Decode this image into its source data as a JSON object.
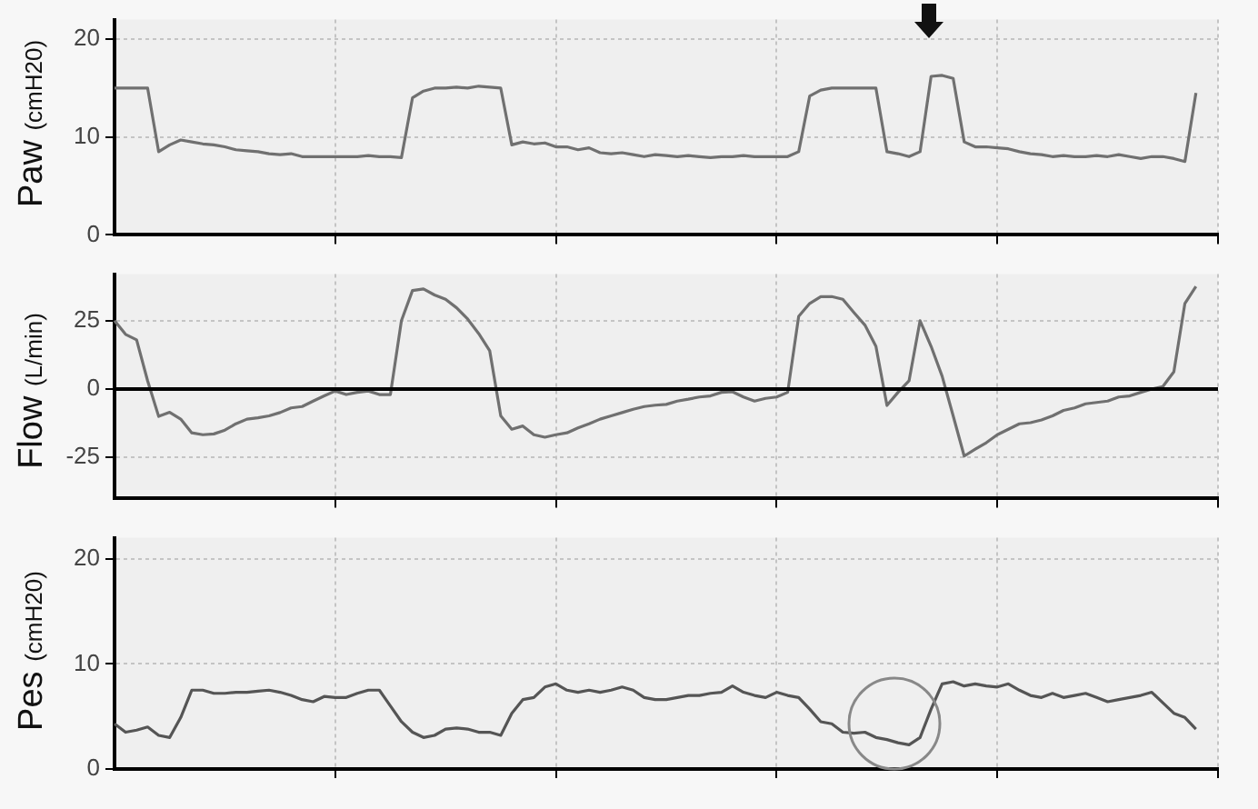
{
  "chart_data": [
    {
      "type": "line",
      "ylabel": "Paw (cmH20)",
      "categories": [
        null,
        null,
        null,
        null,
        null,
        null,
        null,
        null,
        null,
        null,
        null,
        null,
        null,
        null,
        null,
        null,
        null,
        null,
        null,
        null,
        null,
        null,
        null,
        null,
        null,
        null,
        null,
        null,
        null,
        null,
        null,
        null,
        null,
        null,
        null,
        null,
        null,
        null,
        null,
        null,
        null,
        null,
        null,
        null,
        null,
        null,
        null,
        null,
        null,
        null,
        null,
        null,
        null,
        null,
        null,
        null,
        null,
        null,
        null,
        null,
        null,
        null,
        null,
        null,
        null,
        null,
        null,
        null,
        null,
        null,
        null,
        null,
        null,
        null,
        null,
        null,
        null,
        null,
        null,
        null,
        null,
        null,
        null,
        null,
        null,
        null,
        null,
        null,
        null,
        null,
        null,
        null,
        null,
        null,
        null,
        null,
        null,
        null,
        null,
        null,
        null
      ],
      "values": [
        15,
        15,
        15,
        15,
        8.5,
        9.2,
        9.7,
        9.5,
        9.3,
        9.2,
        9,
        8.7,
        8.6,
        8.5,
        8.3,
        8.2,
        8.3,
        8,
        8,
        8,
        8,
        8,
        8,
        8.1,
        8,
        8,
        7.9,
        14,
        14.7,
        15,
        15,
        15.1,
        15,
        15.2,
        15.1,
        15,
        9.2,
        9.5,
        9.3,
        9.4,
        9,
        9,
        8.7,
        8.9,
        8.4,
        8.3,
        8.4,
        8.2,
        8,
        8.2,
        8.1,
        8,
        8.1,
        8,
        7.9,
        8,
        8,
        8.1,
        8,
        8,
        8,
        8,
        8.5,
        14.2,
        14.8,
        15,
        15,
        15,
        15,
        15,
        8.5,
        8.3,
        8,
        8.5,
        16.2,
        16.3,
        16,
        9.5,
        9,
        9,
        8.9,
        8.8,
        8.5,
        8.3,
        8.2,
        8,
        8.1,
        8,
        8,
        8.1,
        8,
        8.2,
        8,
        7.8,
        8,
        8,
        7.8,
        7.5,
        14.5,
        null,
        null
      ],
      "color": "#707070",
      "ylim": [
        0,
        22
      ],
      "yticks": [
        0,
        10,
        20
      ],
      "grid": true,
      "marker": "none",
      "tick_labels": "y"
    },
    {
      "type": "line",
      "ylabel": "Flow (L/min)",
      "categories": [
        null,
        null,
        null,
        null,
        null,
        null,
        null,
        null,
        null,
        null,
        null,
        null,
        null,
        null,
        null,
        null,
        null,
        null,
        null,
        null,
        null,
        null,
        null,
        null,
        null,
        null,
        null,
        null,
        null,
        null,
        null,
        null,
        null,
        null,
        null,
        null,
        null,
        null,
        null,
        null,
        null,
        null,
        null,
        null,
        null,
        null,
        null,
        null,
        null,
        null,
        null,
        null,
        null,
        null,
        null,
        null,
        null,
        null,
        null,
        null,
        null,
        null,
        null,
        null,
        null,
        null,
        null,
        null,
        null,
        null,
        null,
        null,
        null,
        null,
        null,
        null,
        null,
        null,
        null,
        null,
        null,
        null,
        null,
        null,
        null,
        null,
        null,
        null,
        null,
        null,
        null,
        null,
        null,
        null,
        null,
        null,
        null,
        null,
        null,
        null,
        null
      ],
      "values": [
        25,
        20,
        18,
        3,
        -10,
        -8.5,
        -11,
        -16,
        -16.7,
        -16.4,
        -15,
        -12.7,
        -11,
        -10.5,
        -9.8,
        -8.6,
        -6.9,
        -6.4,
        -4.4,
        -2.5,
        -0.7,
        -2,
        -1.2,
        -0.7,
        -2,
        -2,
        25,
        36,
        36.6,
        34.4,
        32.8,
        29.7,
        25.6,
        20.3,
        14,
        -9.8,
        -14.7,
        -13.5,
        -16.7,
        -17.6,
        -16.7,
        -16,
        -14.2,
        -12.7,
        -11,
        -9.8,
        -8.6,
        -7.4,
        -6.4,
        -5.9,
        -5.6,
        -4.4,
        -3.7,
        -2.9,
        -2.5,
        -1.2,
        -1,
        -2.9,
        -4.4,
        -3.4,
        -2.9,
        -1.2,
        26.6,
        31.3,
        33.8,
        33.8,
        32.8,
        28,
        23.4,
        15.6,
        -6,
        -1.2,
        3,
        25,
        15.6,
        4.7,
        -9.8,
        -24.5,
        -22,
        -19.6,
        -16.7,
        -14.7,
        -12.7,
        -12.3,
        -11.3,
        -9.8,
        -7.8,
        -6.9,
        -5.4,
        -4.9,
        -4.4,
        -2.9,
        -2.5,
        -1.2,
        0,
        0.9,
        6.3,
        31.3,
        37.5,
        null,
        null
      ],
      "color": "#707070",
      "ylim": [
        -40,
        42
      ],
      "yticks": [
        -25,
        0,
        25
      ],
      "grid": true,
      "marker": "none",
      "tick_labels": "y",
      "ref_lines": [
        {
          "axis": "y",
          "value": 0,
          "color": "#000000"
        }
      ]
    },
    {
      "type": "line",
      "ylabel": "Pes (cmH20)",
      "categories": [
        null,
        null,
        null,
        null,
        null,
        null,
        null,
        null,
        null,
        null,
        null,
        null,
        null,
        null,
        null,
        null,
        null,
        null,
        null,
        null,
        null,
        null,
        null,
        null,
        null,
        null,
        null,
        null,
        null,
        null,
        null,
        null,
        null,
        null,
        null,
        null,
        null,
        null,
        null,
        null,
        null,
        null,
        null,
        null,
        null,
        null,
        null,
        null,
        null,
        null,
        null,
        null,
        null,
        null,
        null,
        null,
        null,
        null,
        null,
        null,
        null,
        null,
        null,
        null,
        null,
        null,
        null,
        null,
        null,
        null,
        null,
        null,
        null,
        null,
        null,
        null,
        null,
        null,
        null,
        null,
        null,
        null,
        null,
        null,
        null,
        null,
        null,
        null,
        null,
        null,
        null,
        null,
        null,
        null,
        null,
        null,
        null,
        null,
        null,
        null,
        null
      ],
      "values": [
        4.3,
        3.5,
        3.7,
        4,
        3.2,
        3,
        4.9,
        7.5,
        7.5,
        7.2,
        7.2,
        7.3,
        7.3,
        7.4,
        7.5,
        7.3,
        7,
        6.6,
        6.4,
        6.9,
        6.8,
        6.8,
        7.2,
        7.5,
        7.5,
        6,
        4.5,
        3.5,
        3,
        3.2,
        3.8,
        3.9,
        3.8,
        3.5,
        3.5,
        3.2,
        5.3,
        6.6,
        6.8,
        7.8,
        8.1,
        7.5,
        7.3,
        7.5,
        7.3,
        7.5,
        7.8,
        7.5,
        6.8,
        6.6,
        6.6,
        6.8,
        7,
        7,
        7.2,
        7.3,
        7.9,
        7.3,
        7,
        6.8,
        7.3,
        7,
        6.8,
        5.7,
        4.5,
        4.3,
        3.5,
        3.4,
        3.5,
        3,
        2.8,
        2.5,
        2.3,
        3,
        5.7,
        8.1,
        8.3,
        7.9,
        8.1,
        7.9,
        7.8,
        8.1,
        7.5,
        7,
        6.8,
        7.2,
        6.8,
        7,
        7.2,
        6.8,
        6.4,
        6.6,
        6.8,
        7,
        7.3,
        6.3,
        5.3,
        4.9,
        3.8,
        null,
        null
      ],
      "color": "#555555",
      "ylim": [
        0,
        22
      ],
      "yticks": [
        0,
        10,
        20
      ],
      "grid": true,
      "marker": "none",
      "tick_labels": "y"
    }
  ]
}
